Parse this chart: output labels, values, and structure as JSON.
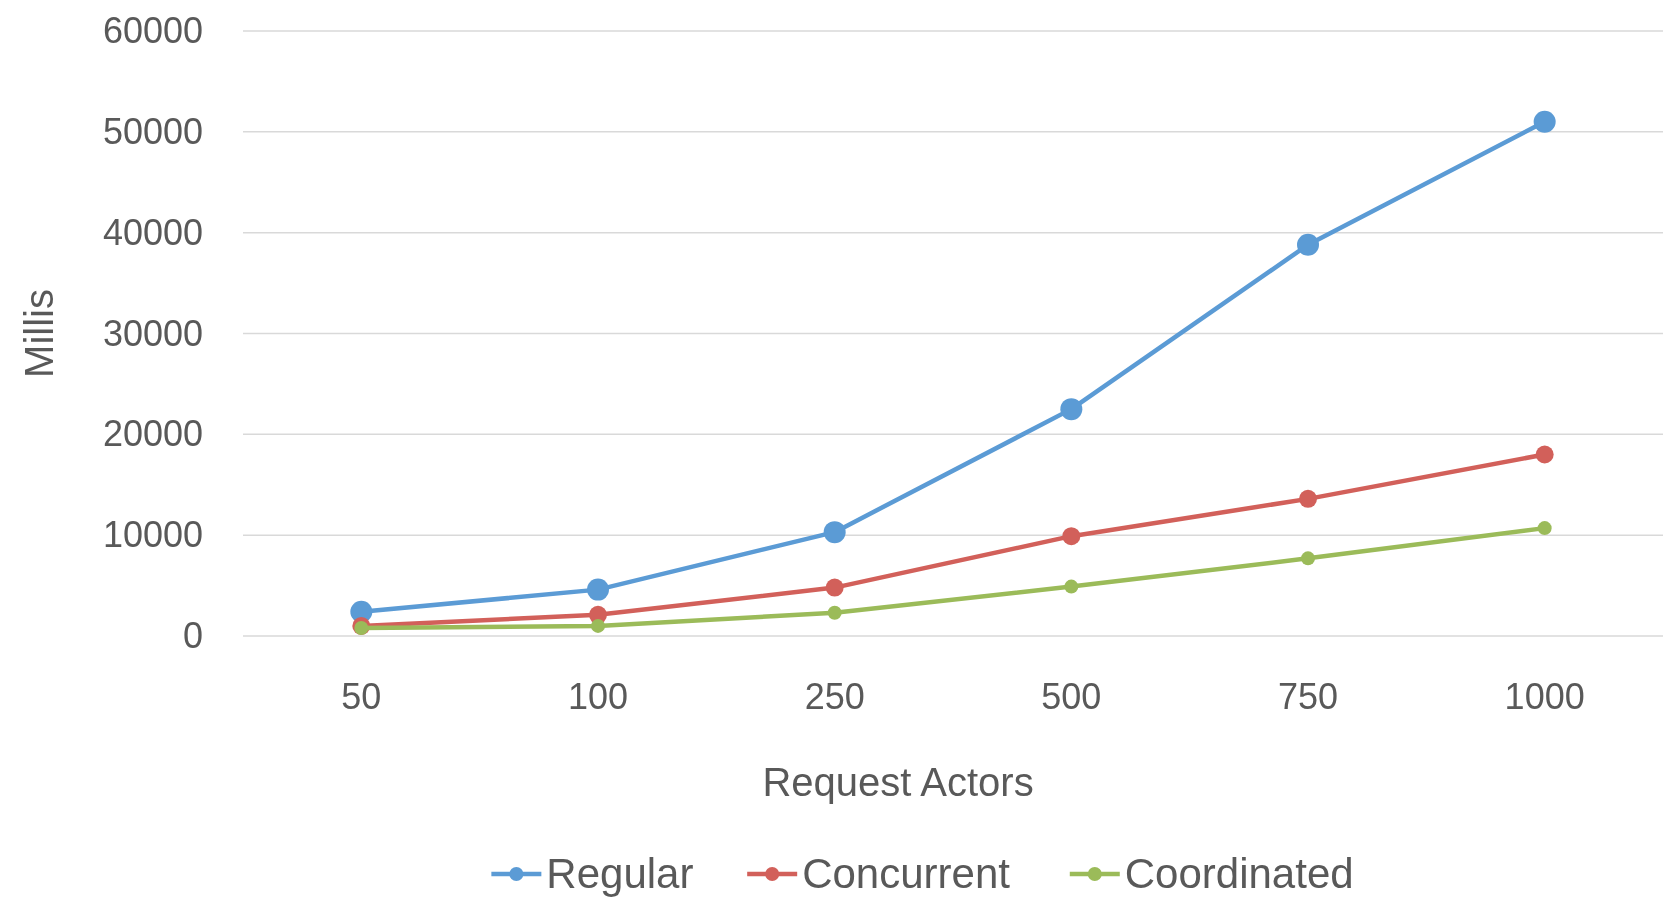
{
  "chart_data": {
    "type": "line",
    "xlabel": "Request Actors",
    "ylabel": "Millis",
    "categories": [
      "50",
      "100",
      "250",
      "500",
      "750",
      "1000"
    ],
    "series": [
      {
        "name": "Regular",
        "color": "#5b9bd5",
        "values": [
          2400,
          4600,
          10300,
          22500,
          38800,
          51000
        ]
      },
      {
        "name": "Concurrent",
        "color": "#d2605a",
        "values": [
          1000,
          2100,
          4800,
          9900,
          13600,
          18000
        ]
      },
      {
        "name": "Coordinated",
        "color": "#9bbb59",
        "values": [
          800,
          1000,
          2300,
          4900,
          7700,
          10700
        ]
      }
    ],
    "ylim": [
      0,
      60000
    ],
    "yticks": [
      0,
      10000,
      20000,
      30000,
      40000,
      50000,
      60000
    ],
    "grid": "y",
    "legend": "bottom",
    "marker": "circle",
    "line_style": "solid"
  }
}
